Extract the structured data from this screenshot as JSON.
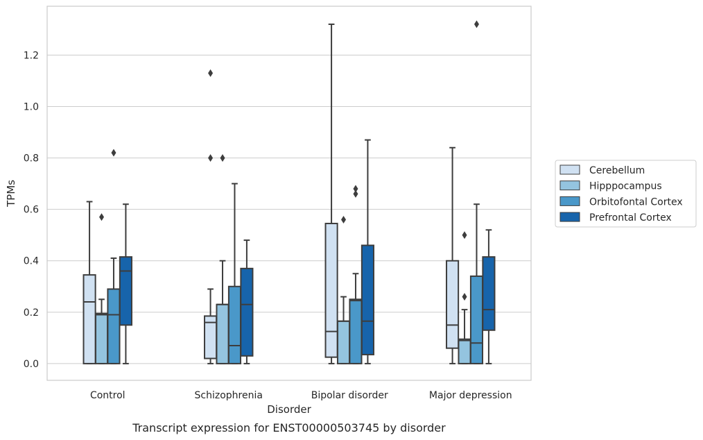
{
  "chart_data": {
    "type": "boxplot",
    "caption": "Transcript expression for ENST00000503745 by disorder",
    "xlabel": "Disorder",
    "ylabel": "TPMs",
    "ylim": [
      -0.065,
      1.39
    ],
    "yticks": [
      0.0,
      0.2,
      0.4,
      0.6,
      0.8,
      1.0,
      1.2
    ],
    "ytick_labels": [
      "0.0",
      "0.2",
      "0.4",
      "0.6",
      "0.8",
      "1.0",
      "1.2"
    ],
    "grid": "horizontal",
    "legend_position": "right",
    "categories": [
      "Control",
      "Schizophrenia",
      "Bipolar disorder",
      "Major depression"
    ],
    "series": [
      {
        "name": "Cerebellum",
        "color": "#d0e1f2",
        "boxes": [
          {
            "whislo": 0.0,
            "q1": 0.0,
            "med": 0.24,
            "q3": 0.345,
            "whishi": 0.63,
            "fliers": []
          },
          {
            "whislo": 0.0,
            "q1": 0.02,
            "med": 0.16,
            "q3": 0.185,
            "whishi": 0.29,
            "fliers": [
              0.8,
              1.13
            ]
          },
          {
            "whislo": 0.0,
            "q1": 0.025,
            "med": 0.125,
            "q3": 0.545,
            "whishi": 1.32,
            "fliers": []
          },
          {
            "whislo": 0.0,
            "q1": 0.06,
            "med": 0.15,
            "q3": 0.4,
            "whishi": 0.84,
            "fliers": []
          }
        ]
      },
      {
        "name": "Hipppocampus",
        "color": "#94c4df",
        "boxes": [
          {
            "whislo": 0.0,
            "q1": 0.0,
            "med": 0.19,
            "q3": 0.195,
            "whishi": 0.25,
            "fliers": [
              0.57
            ]
          },
          {
            "whislo": 0.0,
            "q1": 0.0,
            "med": 0.23,
            "q3": 0.23,
            "whishi": 0.4,
            "fliers": [
              0.8
            ]
          },
          {
            "whislo": 0.0,
            "q1": 0.0,
            "med": 0.165,
            "q3": 0.165,
            "whishi": 0.26,
            "fliers": [
              0.56
            ]
          },
          {
            "whislo": 0.0,
            "q1": 0.0,
            "med": 0.09,
            "q3": 0.095,
            "whishi": 0.21,
            "fliers": [
              0.26,
              0.5
            ]
          }
        ]
      },
      {
        "name": "Orbitofontal Cortex",
        "color": "#4a98c9",
        "boxes": [
          {
            "whislo": 0.0,
            "q1": 0.0,
            "med": 0.19,
            "q3": 0.29,
            "whishi": 0.41,
            "fliers": [
              0.82
            ]
          },
          {
            "whislo": 0.0,
            "q1": 0.0,
            "med": 0.07,
            "q3": 0.3,
            "whishi": 0.7,
            "fliers": []
          },
          {
            "whislo": 0.0,
            "q1": 0.0,
            "med": 0.245,
            "q3": 0.25,
            "whishi": 0.35,
            "fliers": [
              0.66,
              0.68
            ]
          },
          {
            "whislo": 0.0,
            "q1": 0.0,
            "med": 0.08,
            "q3": 0.34,
            "whishi": 0.62,
            "fliers": [
              1.32
            ]
          }
        ]
      },
      {
        "name": "Prefrontal Cortex",
        "color": "#1764ab",
        "boxes": [
          {
            "whislo": 0.0,
            "q1": 0.15,
            "med": 0.36,
            "q3": 0.415,
            "whishi": 0.62,
            "fliers": []
          },
          {
            "whislo": 0.0,
            "q1": 0.03,
            "med": 0.23,
            "q3": 0.37,
            "whishi": 0.48,
            "fliers": []
          },
          {
            "whislo": 0.0,
            "q1": 0.035,
            "med": 0.165,
            "q3": 0.46,
            "whishi": 0.87,
            "fliers": []
          },
          {
            "whislo": 0.0,
            "q1": 0.13,
            "med": 0.21,
            "q3": 0.415,
            "whishi": 0.52,
            "fliers": []
          }
        ]
      }
    ]
  }
}
